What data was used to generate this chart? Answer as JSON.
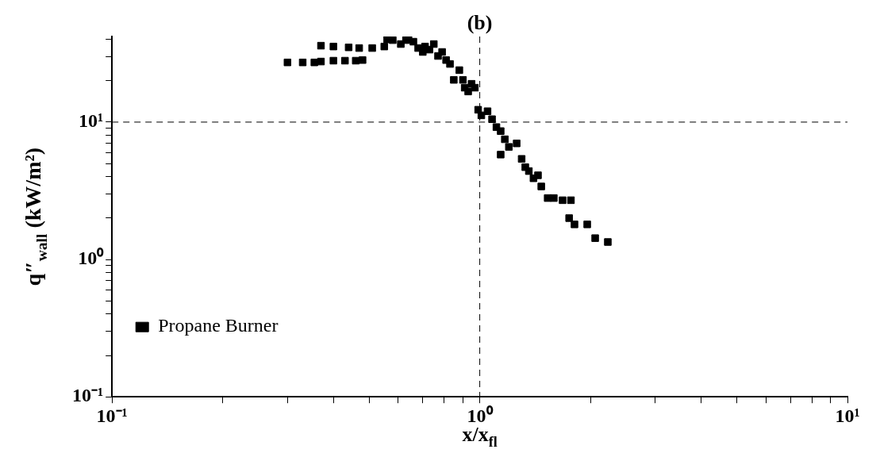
{
  "chart_data": {
    "type": "scatter",
    "title": "(b)",
    "xlabel": "x/x$_{fl}$",
    "ylabel": "q″$_{wall}$ (kW/m²)",
    "log": "xy",
    "grid": false,
    "legend": "bottom left",
    "marker": "square",
    "xlim": [
      0.1,
      10
    ],
    "ylim": [
      0.1,
      42
    ],
    "xticks": [
      {
        "value": 0.1,
        "label": "10⁻¹"
      },
      {
        "value": 0.2,
        "label": null
      },
      {
        "value": 0.3,
        "label": null
      },
      {
        "value": 0.4,
        "label": null
      },
      {
        "value": 0.5,
        "label": null
      },
      {
        "value": 0.6,
        "label": null
      },
      {
        "value": 0.7,
        "label": null
      },
      {
        "value": 0.8,
        "label": null
      },
      {
        "value": 0.9,
        "label": null
      },
      {
        "value": 1,
        "label": "10⁰"
      },
      {
        "value": 2,
        "label": null
      },
      {
        "value": 3,
        "label": null
      },
      {
        "value": 4,
        "label": null
      },
      {
        "value": 5,
        "label": null
      },
      {
        "value": 6,
        "label": null
      },
      {
        "value": 7,
        "label": null
      },
      {
        "value": 8,
        "label": null
      },
      {
        "value": 9,
        "label": null
      },
      {
        "value": 10,
        "label": "10¹"
      }
    ],
    "yticks": [
      {
        "value": 0.1,
        "label": "10⁻¹"
      },
      {
        "value": 0.2,
        "label": null
      },
      {
        "value": 0.3,
        "label": null
      },
      {
        "value": 0.4,
        "label": null
      },
      {
        "value": 0.5,
        "label": null
      },
      {
        "value": 0.6,
        "label": null
      },
      {
        "value": 0.7,
        "label": null
      },
      {
        "value": 0.8,
        "label": null
      },
      {
        "value": 0.9,
        "label": null
      },
      {
        "value": 1,
        "label": "10⁰"
      },
      {
        "value": 2,
        "label": null
      },
      {
        "value": 3,
        "label": null
      },
      {
        "value": 4,
        "label": null
      },
      {
        "value": 5,
        "label": null
      },
      {
        "value": 6,
        "label": null
      },
      {
        "value": 7,
        "label": null
      },
      {
        "value": 8,
        "label": null
      },
      {
        "value": 9,
        "label": null
      },
      {
        "value": 10,
        "label": "10¹"
      },
      {
        "value": 20,
        "label": null
      },
      {
        "value": 30,
        "label": null
      },
      {
        "value": 40,
        "label": null
      }
    ],
    "ref_lines": [
      {
        "axis": "y",
        "value": 10,
        "line_style": "dashed"
      },
      {
        "axis": "x",
        "value": 1,
        "line_style": "dashed"
      }
    ],
    "series": [
      {
        "name": "Propane Burner",
        "color": "#000000",
        "x": [
          0.3,
          0.33,
          0.355,
          0.37,
          0.4,
          0.43,
          0.46,
          0.48,
          0.37,
          0.4,
          0.44,
          0.47,
          0.51,
          0.55,
          0.56,
          0.58,
          0.61,
          0.63,
          0.64,
          0.66,
          0.68,
          0.7,
          0.71,
          0.73,
          0.75,
          0.77,
          0.79,
          0.81,
          0.83,
          0.85,
          0.88,
          0.9,
          0.91,
          0.93,
          0.95,
          0.97,
          0.99,
          1.01,
          1.05,
          1.08,
          1.11,
          1.14,
          1.17,
          1.14,
          1.2,
          1.26,
          1.3,
          1.33,
          1.36,
          1.4,
          1.44,
          1.47,
          1.53,
          1.59,
          1.68,
          1.77,
          1.75,
          1.81,
          1.96,
          2.06,
          2.23
        ],
        "values": [
          27.2,
          27.2,
          27.2,
          27.6,
          28,
          28,
          28,
          28.3,
          36,
          35.5,
          35,
          34.6,
          34.6,
          35.5,
          40,
          39.5,
          37,
          39.5,
          40,
          38.5,
          34.6,
          32.4,
          35.5,
          33.7,
          37,
          30.3,
          32.4,
          28.3,
          26.5,
          20.3,
          23.9,
          20.3,
          17.8,
          16.7,
          19,
          17.8,
          12.3,
          11.2,
          12,
          10.5,
          9.2,
          8.6,
          7.5,
          5.8,
          6.6,
          7.0,
          5.4,
          4.7,
          4.4,
          3.9,
          4.1,
          3.4,
          2.8,
          2.8,
          2.7,
          2.7,
          2.0,
          1.8,
          1.8,
          1.43,
          1.34
        ]
      }
    ]
  }
}
